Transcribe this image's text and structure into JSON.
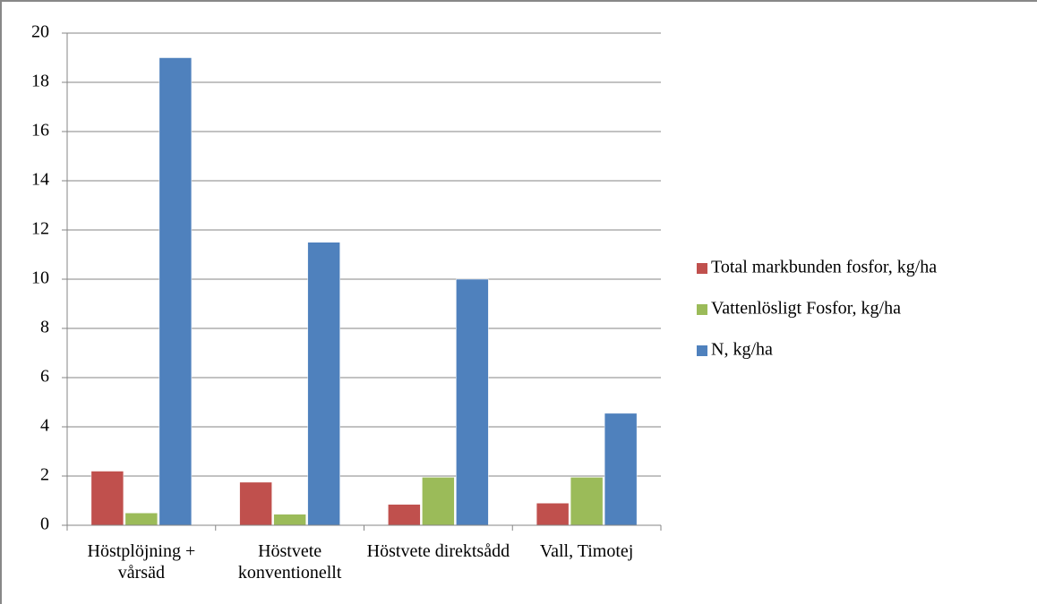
{
  "chart_data": {
    "type": "bar",
    "categories": [
      "Höstplöjning + vårsäd",
      "Höstvete konventionellt",
      "Höstvete direktsådd",
      "Vall, Timotej"
    ],
    "series": [
      {
        "name": "Total markbunden fosfor, kg/ha",
        "color": "#c0504d",
        "values": [
          2.2,
          1.75,
          0.85,
          0.9
        ]
      },
      {
        "name": "Vattenlösligt Fosfor, kg/ha",
        "color": "#9bbb59",
        "values": [
          0.5,
          0.45,
          1.95,
          1.95
        ]
      },
      {
        "name": "N, kg/ha",
        "color": "#4f81bd",
        "values": [
          19,
          11.5,
          10,
          4.55
        ]
      }
    ],
    "ylim": [
      0,
      20
    ],
    "yticks": [
      0,
      2,
      4,
      6,
      8,
      10,
      12,
      14,
      16,
      18,
      20
    ],
    "grid": true,
    "legend": "right"
  }
}
